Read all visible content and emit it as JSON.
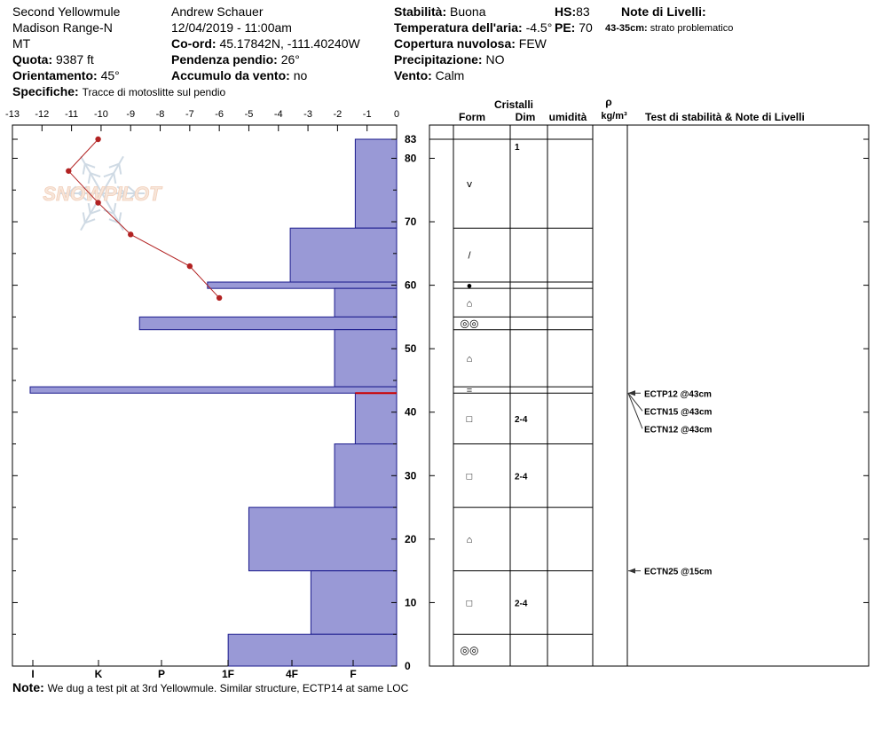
{
  "header": {
    "location_line1": "Second Yellowmule",
    "location_line2": "Madison Range-N",
    "location_line3": "MT",
    "observer": "Andrew Schauer",
    "datetime": "12/04/2019 - 11:00am",
    "quota_label": "Quota:",
    "quota_value": "9387 ft",
    "coord_label": "Co-ord:",
    "coord_value": "45.17842N, -111.40240W",
    "orient_label": "Orientamento:",
    "orient_value": "45°",
    "slope_label": "Pendenza pendio:",
    "slope_value": "26°",
    "wind_load_label": "Accumulo da vento:",
    "wind_load_value": "no",
    "specifiche_label": "Specifiche:",
    "specifiche_value": "Tracce di motoslitte sul pendio",
    "stability_label": "Stabilità:",
    "stability_value": "Buona",
    "air_temp_label": "Temperatura dell'aria:",
    "air_temp_value": "-4.5°",
    "cloud_label": "Copertura nuvolosa:",
    "cloud_value": "FEW",
    "precip_label": "Precipitazione:",
    "precip_value": "NO",
    "wind_label": "Vento:",
    "wind_value": "Calm",
    "hs_label": "HS:",
    "hs_value": "83",
    "pe_label": "PE:",
    "pe_value": "70",
    "layer_notes_title": "Note di Livelli:",
    "layer_note_range": "43-35cm:",
    "layer_note_text": "strato problematico",
    "note_label": "Note:",
    "note_value": "We dug a test pit at 3rd Yellowmule. Similar structure, ECTP14 at same LOC"
  },
  "watermark": "SNOWPILOT",
  "columns": {
    "crystals": "Cristalli",
    "form": "Form",
    "dim": "Dim",
    "humidity": "umidità",
    "rho": "ρ",
    "density_unit": "kg/m³",
    "tests": "Test di stabilità & Note di Livelli"
  },
  "chart_data": {
    "type": "snow_profile",
    "temperature_axis": {
      "ticks": [
        -13,
        -12,
        -11,
        -10,
        -9,
        -8,
        -7,
        -6,
        -5,
        -4,
        -3,
        -2,
        -1,
        0
      ],
      "range": [
        -13,
        0
      ]
    },
    "hardness_axis": {
      "ticks": [
        "I",
        "K",
        "P",
        "1F",
        "4F",
        "F"
      ]
    },
    "depth_axis": {
      "ticks": [
        0,
        10,
        20,
        30,
        40,
        50,
        60,
        70,
        80,
        83
      ],
      "range": [
        0,
        83
      ]
    },
    "temperature_profile": [
      {
        "height": 83,
        "temp": -10.1
      },
      {
        "height": 78,
        "temp": -11.1
      },
      {
        "height": 73,
        "temp": -10.1
      },
      {
        "height": 68,
        "temp": -9.0
      },
      {
        "height": 63,
        "temp": -7.0
      },
      {
        "height": 58,
        "temp": -6.0
      }
    ],
    "layers": [
      {
        "top": 83,
        "bottom": 69,
        "temp_extent": -1.4,
        "form": "ⅴ",
        "dim": "1"
      },
      {
        "top": 69,
        "bottom": 60.5,
        "temp_extent": -3.6,
        "form": "/",
        "dim": ""
      },
      {
        "top": 60.5,
        "bottom": 59.5,
        "temp_extent": -6.4,
        "form": "●",
        "dim": ""
      },
      {
        "top": 59.5,
        "bottom": 55,
        "temp_extent": -2.1,
        "form": "⌂",
        "dim": ""
      },
      {
        "top": 55,
        "bottom": 53,
        "temp_extent": -8.7,
        "form": "◎◎",
        "dim": ""
      },
      {
        "top": 53,
        "bottom": 44,
        "temp_extent": -2.1,
        "form": "⌂",
        "dim": ""
      },
      {
        "top": 44,
        "bottom": 43,
        "temp_extent": -12.4,
        "form": "=",
        "dim": ""
      },
      {
        "top": 43,
        "bottom": 35,
        "temp_extent": -1.4,
        "form": "□",
        "dim": "2-4"
      },
      {
        "top": 35,
        "bottom": 25,
        "temp_extent": -2.1,
        "form": "□",
        "dim": "2-4"
      },
      {
        "top": 25,
        "bottom": 15,
        "temp_extent": -5.0,
        "form": "⌂",
        "dim": ""
      },
      {
        "top": 15,
        "bottom": 5,
        "temp_extent": -2.9,
        "form": "□",
        "dim": "2-4"
      },
      {
        "top": 5,
        "bottom": 0,
        "temp_extent": -5.7,
        "form": "◎◎",
        "dim": ""
      }
    ],
    "weak_layer_height": 43,
    "tests": [
      {
        "label": "ECTP12 @43cm",
        "height": 43
      },
      {
        "label": "ECTN15 @43cm",
        "height": 43
      },
      {
        "label": "ECTN12 @43cm",
        "height": 43
      },
      {
        "label": "ECTN25 @15cm",
        "height": 15
      }
    ],
    "colors": {
      "layer_fill": "#9999d6",
      "layer_stroke": "#1a1a8c",
      "temp_line": "#b22222",
      "weak_layer": "#cc0000"
    }
  }
}
